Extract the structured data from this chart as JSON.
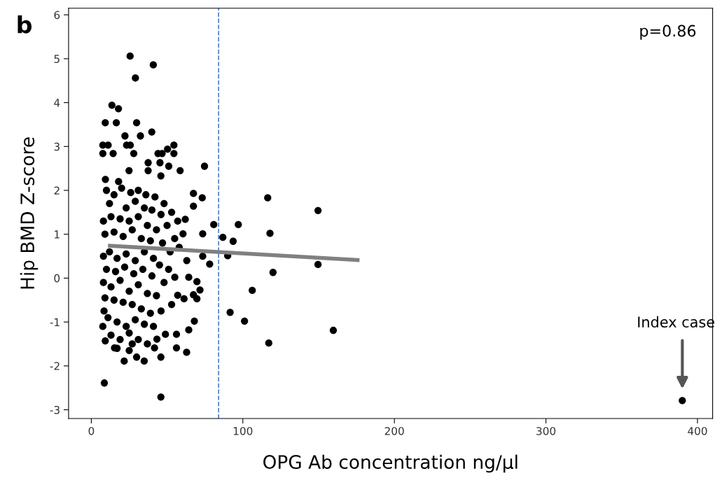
{
  "chart_data": {
    "type": "scatter",
    "xlabel": "OPG Ab concentration ng/µl",
    "ylabel": "Hip BMD Z-score",
    "xlim": [
      -15,
      410
    ],
    "xticks": [
      0,
      100,
      200,
      300,
      400
    ],
    "ylim": [
      -3.2,
      6.15
    ],
    "yticks": [
      -3,
      -2,
      -1,
      0,
      1,
      2,
      3,
      4,
      5,
      6
    ],
    "grid": false,
    "legend": false,
    "marker": "circle",
    "ref_lines": [
      {
        "axis": "x",
        "value": 84,
        "color": "#4a7fc8",
        "line_style": "dashed"
      }
    ],
    "annotations": [
      "b",
      "p=0.86",
      "Index case"
    ],
    "series": [
      {
        "color": "#000000",
        "x": [
          25.6,
          40.9,
          29.1,
          13.6,
          17.9,
          9.2,
          16.5,
          29.9,
          22.2,
          32.4,
          39.9,
          7.6,
          11.1,
          23.3,
          25.7,
          50.3,
          54.5,
          54.5,
          44,
          46.7,
          7.6,
          14.4,
          28,
          74.7,
          58.6,
          51.1,
          45.3,
          37.5,
          37.5,
          24.9,
          9.3,
          45.9,
          67.4,
          73.2,
          67.4,
          62,
          60.5,
          73.5,
          80.8,
          97,
          116.4,
          149.6,
          117.9,
          86.8,
          93.6,
          90,
          78.1,
          149.6,
          119.9,
          106.2,
          91.6,
          101.1,
          159.7,
          117.1,
          390,
          8.6,
          45.9,
          21.7,
          29.9,
          34.9,
          45.9,
          62.9,
          56.2,
          56.2,
          41.7,
          15.3,
          9.2,
          7.6,
          43.3,
          48.9,
          64.3,
          68,
          8.4,
          69.7,
          71.7,
          67.4,
          69.7,
          61.2,
          57,
          64.3,
          55.1,
          73.5,
          10,
          15,
          20,
          26,
          31,
          36,
          42,
          48,
          18,
          12,
          23,
          29,
          35,
          40,
          46,
          53,
          57,
          8,
          13,
          19,
          25,
          31,
          37,
          43,
          50,
          55,
          9,
          15,
          21,
          27,
          33,
          39,
          47,
          52,
          58,
          8,
          12,
          17,
          23,
          29,
          35,
          41,
          45,
          51,
          63,
          10,
          16,
          22,
          28,
          34,
          40,
          48,
          8,
          13,
          19,
          25,
          31,
          37,
          43,
          53,
          9,
          15,
          21,
          27,
          33,
          39,
          46,
          11,
          17,
          23,
          29,
          35,
          41,
          13,
          19,
          25,
          31,
          37,
          17,
          25,
          27
        ],
        "values": [
          5.06,
          4.86,
          4.56,
          3.94,
          3.86,
          3.54,
          3.54,
          3.54,
          3.24,
          3.24,
          3.33,
          3.03,
          3.03,
          3.03,
          3.03,
          2.94,
          3.03,
          2.84,
          2.84,
          2.84,
          2.84,
          2.84,
          2.84,
          2.55,
          2.45,
          2.55,
          2.63,
          2.63,
          2.45,
          2.45,
          2.25,
          2.33,
          1.93,
          1.83,
          1.64,
          1.34,
          1.01,
          1.01,
          1.22,
          1.22,
          1.83,
          1.54,
          1.02,
          0.93,
          0.84,
          0.51,
          0.32,
          0.31,
          0.13,
          -0.28,
          -0.78,
          -0.98,
          -1.19,
          -1.48,
          -2.79,
          -2.39,
          -2.71,
          -1.89,
          -1.8,
          -1.89,
          -1.8,
          -1.69,
          -1.59,
          -1.28,
          -1.59,
          -1.59,
          -1.43,
          -1.1,
          -1.39,
          -1.28,
          -1.18,
          -0.98,
          -0.75,
          -0.08,
          -0.27,
          -0.38,
          -0.47,
          -0.47,
          -0.39,
          0.02,
          0.02,
          0.5,
          2.0,
          1.9,
          2.05,
          1.95,
          2.0,
          1.9,
          1.85,
          1.7,
          2.2,
          1.7,
          1.6,
          1.75,
          1.6,
          1.55,
          1.45,
          1.5,
          1.3,
          1.3,
          1.4,
          1.35,
          1.3,
          1.4,
          1.2,
          1.1,
          1.2,
          0.9,
          1.0,
          1.05,
          0.95,
          1.1,
          0.9,
          0.85,
          0.8,
          0.6,
          0.7,
          0.5,
          0.6,
          0.45,
          0.55,
          0.4,
          0.6,
          0.45,
          0.3,
          0.2,
          0.4,
          0.2,
          0.15,
          0.25,
          0.1,
          0.2,
          0.05,
          -0.1,
          -0.1,
          -0.2,
          -0.05,
          -0.3,
          -0.15,
          -0.35,
          -0.4,
          -0.6,
          -0.45,
          -0.5,
          -0.55,
          -0.6,
          -0.7,
          -0.8,
          -0.75,
          -0.9,
          -1.0,
          -1.1,
          -0.95,
          -1.05,
          -1.1,
          -1.3,
          -1.4,
          -1.25,
          -1.4,
          -1.5,
          -1.6,
          -1.65,
          -1.5
        ]
      },
      {
        "type": "line",
        "color": "#808080",
        "marker": "none",
        "x": [
          11,
          177
        ],
        "values": [
          0.74,
          0.41
        ]
      }
    ]
  }
}
